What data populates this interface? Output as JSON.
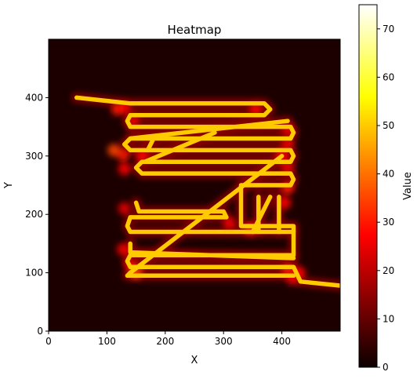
{
  "chart_data": {
    "type": "heatmap",
    "title": "Heatmap",
    "xlabel": "X",
    "ylabel": "Y",
    "xlim": [
      0,
      500
    ],
    "ylim": [
      0,
      500
    ],
    "x_ticks": [
      0,
      100,
      200,
      300,
      400
    ],
    "y_ticks": [
      0,
      100,
      200,
      300,
      400
    ],
    "colormap": "hot",
    "colorbar": {
      "label": "Value",
      "range": [
        0,
        75
      ],
      "ticks": [
        0,
        10,
        20,
        30,
        40,
        50,
        60,
        70
      ]
    },
    "background_value": 2,
    "paths": [
      {
        "value": 50,
        "points": [
          [
            48,
            400
          ],
          [
            140,
            390
          ],
          [
            370,
            390
          ],
          [
            380,
            380
          ],
          [
            370,
            370
          ],
          [
            140,
            370
          ],
          [
            135,
            360
          ],
          [
            140,
            350
          ],
          [
            415,
            350
          ],
          [
            420,
            340
          ],
          [
            415,
            330
          ],
          [
            140,
            330
          ],
          [
            130,
            320
          ],
          [
            140,
            310
          ],
          [
            415,
            310
          ],
          [
            420,
            300
          ],
          [
            415,
            290
          ],
          [
            160,
            290
          ],
          [
            150,
            280
          ],
          [
            160,
            270
          ],
          [
            415,
            270
          ],
          [
            420,
            260
          ],
          [
            415,
            250
          ],
          [
            330,
            250
          ],
          [
            330,
            180
          ],
          [
            420,
            180
          ],
          [
            420,
            130
          ],
          [
            140,
            130
          ],
          [
            135,
            120
          ],
          [
            140,
            110
          ],
          [
            420,
            110
          ],
          [
            432,
            85
          ],
          [
            500,
            78
          ]
        ]
      },
      {
        "value": 50,
        "points": [
          [
            150,
            220
          ],
          [
            155,
            205
          ],
          [
            300,
            205
          ],
          [
            305,
            195
          ],
          [
            140,
            195
          ],
          [
            135,
            180
          ],
          [
            140,
            170
          ],
          [
            420,
            170
          ]
        ]
      },
      {
        "value": 50,
        "points": [
          [
            140,
            150
          ],
          [
            140,
            135
          ],
          [
            420,
            125
          ]
        ]
      },
      {
        "value": 50,
        "points": [
          [
            140,
            100
          ],
          [
            135,
            95
          ],
          [
            420,
            95
          ]
        ]
      },
      {
        "value": 50,
        "points": [
          [
            140,
            330
          ],
          [
            410,
            360
          ]
        ]
      },
      {
        "value": 50,
        "points": [
          [
            140,
            100
          ],
          [
            400,
            300
          ]
        ]
      },
      {
        "value": 50,
        "points": [
          [
            165,
            290
          ],
          [
            285,
            340
          ]
        ]
      },
      {
        "value": 50,
        "points": [
          [
            350,
            170
          ],
          [
            380,
            230
          ]
        ]
      },
      {
        "value": 50,
        "points": [
          [
            360,
            170
          ],
          [
            360,
            230
          ]
        ]
      },
      {
        "value": 50,
        "points": [
          [
            395,
            170
          ],
          [
            395,
            230
          ]
        ]
      },
      {
        "value": 50,
        "points": [
          [
            170,
            310
          ],
          [
            180,
            330
          ]
        ]
      }
    ],
    "hotspots": [
      {
        "x": 112,
        "y": 310,
        "value": 35
      },
      {
        "x": 128,
        "y": 302,
        "value": 30
      },
      {
        "x": 160,
        "y": 300,
        "value": 28
      },
      {
        "x": 130,
        "y": 278,
        "value": 28
      },
      {
        "x": 118,
        "y": 380,
        "value": 30
      },
      {
        "x": 130,
        "y": 382,
        "value": 28
      },
      {
        "x": 145,
        "y": 360,
        "value": 25
      },
      {
        "x": 130,
        "y": 210,
        "value": 25
      },
      {
        "x": 128,
        "y": 140,
        "value": 28
      },
      {
        "x": 140,
        "y": 115,
        "value": 25
      },
      {
        "x": 150,
        "y": 100,
        "value": 35
      },
      {
        "x": 355,
        "y": 380,
        "value": 28
      },
      {
        "x": 410,
        "y": 345,
        "value": 25
      },
      {
        "x": 410,
        "y": 320,
        "value": 25
      },
      {
        "x": 400,
        "y": 300,
        "value": 28
      },
      {
        "x": 410,
        "y": 280,
        "value": 25
      },
      {
        "x": 410,
        "y": 245,
        "value": 30
      },
      {
        "x": 405,
        "y": 220,
        "value": 28
      },
      {
        "x": 310,
        "y": 185,
        "value": 28
      },
      {
        "x": 345,
        "y": 175,
        "value": 30
      },
      {
        "x": 410,
        "y": 105,
        "value": 30
      },
      {
        "x": 430,
        "y": 100,
        "value": 28
      },
      {
        "x": 418,
        "y": 90,
        "value": 25
      }
    ]
  }
}
